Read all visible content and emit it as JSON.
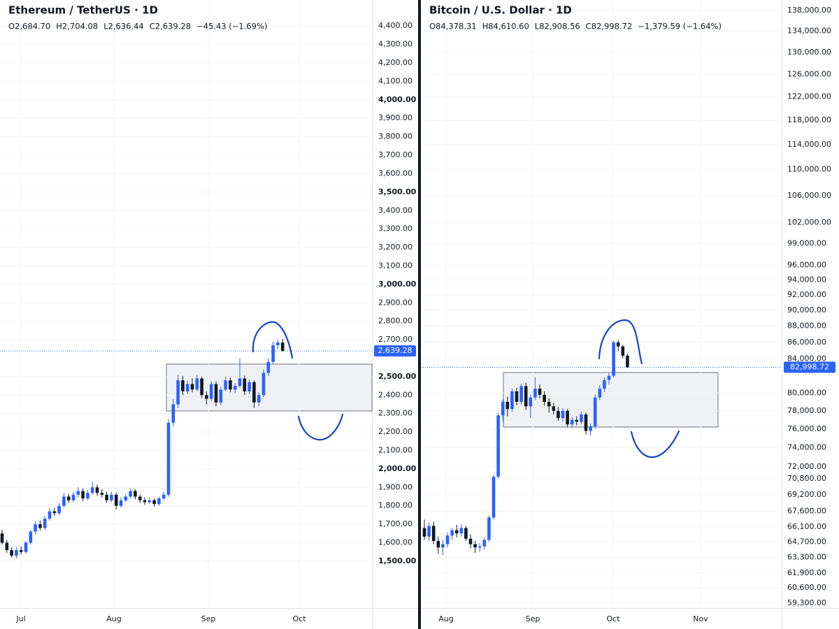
{
  "chart_data": [
    {
      "type": "candlestick",
      "title": "Ethereum / TetherUS · 1D",
      "ohlc_labels": [
        "O2,684.70",
        "H2,704.08",
        "L2,636.44",
        "C2,639.28"
      ],
      "change": "−45.43 (−1.69%)",
      "last_label": "2,639.28",
      "up_color": "#2962ff",
      "down_color": "#131722",
      "grid": true,
      "log": false,
      "x_labels": [
        "Jul",
        "Aug",
        "Sep",
        "Oct"
      ],
      "ylim": [
        1246,
        4541
      ],
      "yticks": [
        {
          "value": 4400,
          "label": "4,400.00"
        },
        {
          "value": 4300,
          "label": "4,300.00"
        },
        {
          "value": 4200,
          "label": "4,200.00"
        },
        {
          "value": 4100,
          "label": "4,100.00"
        },
        {
          "value": 4000,
          "label": "4,000.00"
        },
        {
          "value": 3900,
          "label": "3,900.00"
        },
        {
          "value": 3800,
          "label": "3,800.00"
        },
        {
          "value": 3700,
          "label": "3,700.00"
        },
        {
          "value": 3600,
          "label": "3,600.00"
        },
        {
          "value": 3500,
          "label": "3,500.00"
        },
        {
          "value": 3400,
          "label": "3,400.00"
        },
        {
          "value": 3300,
          "label": "3,300.00"
        },
        {
          "value": 3200,
          "label": "3,200.00"
        },
        {
          "value": 3100,
          "label": "3,100.00"
        },
        {
          "value": 3000,
          "label": "3,000.00"
        },
        {
          "value": 2900,
          "label": "2,900.00"
        },
        {
          "value": 2800,
          "label": "2,800.00"
        },
        {
          "value": 2700,
          "label": "2,700.00"
        },
        {
          "value": 2500,
          "label": "2,500.00"
        },
        {
          "value": 2400,
          "label": "2,400.00"
        },
        {
          "value": 2300,
          "label": "2,300.00"
        },
        {
          "value": 2200,
          "label": "2,200.00"
        },
        {
          "value": 2100,
          "label": "2,100.00"
        },
        {
          "value": 2000,
          "label": "2,000.00"
        },
        {
          "value": 1900,
          "label": "1,900.00"
        },
        {
          "value": 1800,
          "label": "1,800.00"
        },
        {
          "value": 1700,
          "label": "1,700.00"
        },
        {
          "value": 1600,
          "label": "1,600.00"
        },
        {
          "value": 1500,
          "label": "1,500.00"
        }
      ],
      "candles": [
        [
          1650,
          1670,
          1590,
          1600
        ],
        [
          1600,
          1615,
          1545,
          1560
        ],
        [
          1560,
          1575,
          1520,
          1530
        ],
        [
          1530,
          1575,
          1515,
          1560
        ],
        [
          1560,
          1580,
          1535,
          1550
        ],
        [
          1550,
          1610,
          1540,
          1600
        ],
        [
          1600,
          1670,
          1590,
          1660
        ],
        [
          1660,
          1715,
          1645,
          1700
        ],
        [
          1700,
          1720,
          1665,
          1680
        ],
        [
          1680,
          1745,
          1670,
          1730
        ],
        [
          1730,
          1785,
          1720,
          1770
        ],
        [
          1770,
          1790,
          1745,
          1760
        ],
        [
          1760,
          1815,
          1750,
          1800
        ],
        [
          1800,
          1870,
          1790,
          1850
        ],
        [
          1850,
          1865,
          1815,
          1830
        ],
        [
          1830,
          1875,
          1820,
          1860
        ],
        [
          1860,
          1900,
          1845,
          1880
        ],
        [
          1880,
          1895,
          1825,
          1840
        ],
        [
          1840,
          1885,
          1830,
          1870
        ],
        [
          1870,
          1930,
          1860,
          1900
        ],
        [
          1900,
          1915,
          1855,
          1870
        ],
        [
          1870,
          1890,
          1845,
          1860
        ],
        [
          1860,
          1875,
          1815,
          1830
        ],
        [
          1830,
          1875,
          1820,
          1860
        ],
        [
          1860,
          1870,
          1780,
          1800
        ],
        [
          1800,
          1845,
          1790,
          1830
        ],
        [
          1830,
          1865,
          1820,
          1850
        ],
        [
          1850,
          1895,
          1840,
          1880
        ],
        [
          1880,
          1890,
          1835,
          1850
        ],
        [
          1850,
          1860,
          1815,
          1830
        ],
        [
          1830,
          1845,
          1805,
          1820
        ],
        [
          1820,
          1845,
          1810,
          1830
        ],
        [
          1830,
          1840,
          1795,
          1810
        ],
        [
          1810,
          1850,
          1800,
          1840
        ],
        [
          1840,
          1875,
          1830,
          1860
        ],
        [
          1860,
          2270,
          1850,
          2250
        ],
        [
          2250,
          2380,
          2230,
          2350
        ],
        [
          2350,
          2510,
          2330,
          2480
        ],
        [
          2480,
          2505,
          2400,
          2420
        ],
        [
          2420,
          2480,
          2405,
          2460
        ],
        [
          2460,
          2490,
          2415,
          2430
        ],
        [
          2430,
          2510,
          2420,
          2490
        ],
        [
          2490,
          2500,
          2385,
          2400
        ],
        [
          2400,
          2420,
          2350,
          2380
        ],
        [
          2380,
          2475,
          2365,
          2460
        ],
        [
          2460,
          2475,
          2340,
          2360
        ],
        [
          2360,
          2445,
          2345,
          2430
        ],
        [
          2430,
          2500,
          2420,
          2480
        ],
        [
          2480,
          2495,
          2415,
          2430
        ],
        [
          2430,
          2465,
          2410,
          2450
        ],
        [
          2450,
          2600,
          2440,
          2490
        ],
        [
          2490,
          2505,
          2400,
          2420
        ],
        [
          2420,
          2485,
          2405,
          2470
        ],
        [
          2470,
          2480,
          2330,
          2360
        ],
        [
          2360,
          2415,
          2340,
          2400
        ],
        [
          2400,
          2540,
          2390,
          2520
        ],
        [
          2520,
          2600,
          2505,
          2580
        ],
        [
          2580,
          2690,
          2570,
          2670
        ],
        [
          2670,
          2700,
          2650,
          2684.7
        ],
        [
          2684.7,
          2704.08,
          2636.44,
          2639.28
        ]
      ]
    },
    {
      "type": "candlestick",
      "title": "Bitcoin / U.S. Dollar · 1D",
      "ohlc_labels": [
        "O84,378.31",
        "H84,610.60",
        "L82,908.56",
        "C82,998.72"
      ],
      "change": "−1,379.59 (−1.64%)",
      "last_label": "82,998.72",
      "up_color": "#2962ff",
      "down_color": "#131722",
      "grid": true,
      "log": true,
      "x_labels": [
        "Aug",
        "Sep",
        "Oct",
        "Nov"
      ],
      "ylim": [
        58888,
        140078
      ],
      "yticks": [
        {
          "value": 138000,
          "label": "138,000.00"
        },
        {
          "value": 134000,
          "label": "134,000.00"
        },
        {
          "value": 130000,
          "label": "130,000.00"
        },
        {
          "value": 126000,
          "label": "126,000.00"
        },
        {
          "value": 122000,
          "label": "122,000.00"
        },
        {
          "value": 118000,
          "label": "118,000.00"
        },
        {
          "value": 114000,
          "label": "114,000.00"
        },
        {
          "value": 110000,
          "label": "110,000.00"
        },
        {
          "value": 106000,
          "label": "106,000.00"
        },
        {
          "value": 102000,
          "label": "102,000.00"
        },
        {
          "value": 99000,
          "label": "99,000.00"
        },
        {
          "value": 96000,
          "label": "96,000.00"
        },
        {
          "value": 94000,
          "label": "94,000.00"
        },
        {
          "value": 92000,
          "label": "92,000.00"
        },
        {
          "value": 90000,
          "label": "90,000.00"
        },
        {
          "value": 88000,
          "label": "88,000.00"
        },
        {
          "value": 86000,
          "label": "86,000.00"
        },
        {
          "value": 84000,
          "label": "84,000.00"
        },
        {
          "value": 80000,
          "label": "80,000.00"
        },
        {
          "value": 78000,
          "label": "78,000.00"
        },
        {
          "value": 76000,
          "label": "76,000.00"
        },
        {
          "value": 74000,
          "label": "74,000.00"
        },
        {
          "value": 72000,
          "label": "72,000.00"
        },
        {
          "value": 70800,
          "label": "70,800.00"
        },
        {
          "value": 69200,
          "label": "69,200.00"
        },
        {
          "value": 67600,
          "label": "67,600.00"
        },
        {
          "value": 66100,
          "label": "66,100.00"
        },
        {
          "value": 64700,
          "label": "64,700.00"
        },
        {
          "value": 63300,
          "label": "63,300.00"
        },
        {
          "value": 61900,
          "label": "61,900.00"
        },
        {
          "value": 60600,
          "label": "60,600.00"
        },
        {
          "value": 59300,
          "label": "59,300.00"
        }
      ],
      "candles": [
        [
          66000,
          66800,
          64900,
          65200
        ],
        [
          65200,
          66500,
          64800,
          66200
        ],
        [
          66200,
          66600,
          64500,
          64800
        ],
        [
          64800,
          65200,
          63600,
          64200
        ],
        [
          64200,
          64900,
          63500,
          64500
        ],
        [
          64500,
          65600,
          64200,
          65300
        ],
        [
          65300,
          66000,
          64900,
          65800
        ],
        [
          65800,
          66300,
          65100,
          65500
        ],
        [
          65500,
          66400,
          65200,
          66000
        ],
        [
          66000,
          66200,
          64800,
          65000
        ],
        [
          65000,
          65400,
          64100,
          64500
        ],
        [
          64500,
          64800,
          63700,
          64200
        ],
        [
          64200,
          64600,
          63800,
          64300
        ],
        [
          64300,
          65100,
          64000,
          64900
        ],
        [
          64900,
          67200,
          64700,
          67000
        ],
        [
          67000,
          71200,
          66800,
          71000
        ],
        [
          71000,
          77800,
          70800,
          77500
        ],
        [
          77500,
          79300,
          76800,
          79000
        ],
        [
          79000,
          79600,
          77400,
          78200
        ],
        [
          78200,
          80500,
          77900,
          80200
        ],
        [
          80200,
          80600,
          78600,
          79000
        ],
        [
          79000,
          81100,
          78700,
          80800
        ],
        [
          80800,
          81200,
          78100,
          78500
        ],
        [
          78500,
          79800,
          77200,
          79500
        ],
        [
          79500,
          81800,
          79200,
          80500
        ],
        [
          80500,
          81000,
          79400,
          79800
        ],
        [
          79800,
          80200,
          78600,
          79000
        ],
        [
          79000,
          79400,
          77800,
          78500
        ],
        [
          78500,
          78900,
          77600,
          78000
        ],
        [
          78000,
          78400,
          76900,
          77200
        ],
        [
          77200,
          78300,
          76800,
          78000
        ],
        [
          78000,
          78200,
          76200,
          76500
        ],
        [
          76500,
          77300,
          76100,
          77000
        ],
        [
          77000,
          77400,
          76400,
          76800
        ],
        [
          76800,
          77900,
          76500,
          77600
        ],
        [
          77600,
          77800,
          75400,
          75800
        ],
        [
          75800,
          76600,
          75300,
          76300
        ],
        [
          76300,
          79800,
          76100,
          79500
        ],
        [
          79500,
          80900,
          79200,
          80500
        ],
        [
          80500,
          81800,
          80100,
          81500
        ],
        [
          81500,
          82300,
          81000,
          82000
        ],
        [
          82000,
          86200,
          81800,
          86000
        ],
        [
          86000,
          86300,
          84900,
          85500
        ],
        [
          85500,
          85700,
          84100,
          84378.31
        ],
        [
          84378.31,
          84610.6,
          82908.56,
          82998.72
        ]
      ]
    }
  ]
}
